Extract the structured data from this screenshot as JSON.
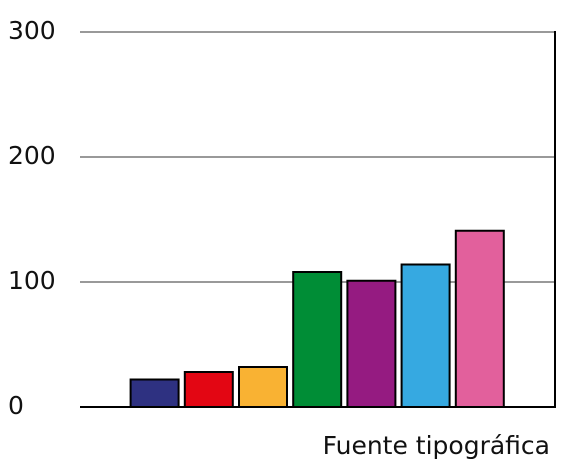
{
  "chart_data": {
    "type": "bar",
    "x_label": "Fuente tipográfica",
    "categories": [
      null,
      null,
      null,
      null,
      null,
      null,
      null
    ],
    "values": [
      22,
      28,
      32,
      108,
      101,
      114,
      141
    ],
    "colors": [
      "#2e3181",
      "#e30613",
      "#f9b233",
      "#008d36",
      "#951b81",
      "#36a9e1",
      "#e2609c"
    ],
    "ylim": [
      0,
      300
    ],
    "yticks": [
      0,
      100,
      200,
      300
    ],
    "grid": true
  }
}
